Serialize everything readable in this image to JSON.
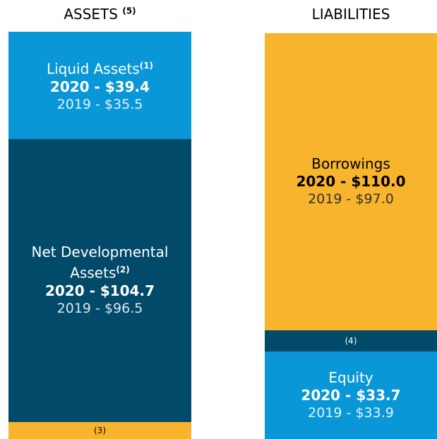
{
  "assets": {
    "title": "ASSETS",
    "note": "(5)",
    "blocks": [
      {
        "label": "Liquid Assets",
        "note": "(1)",
        "current": "2020 - $39.4",
        "prior": "2019 - $35.5"
      },
      {
        "label_lines": [
          "Net Developmental",
          "Assets"
        ],
        "note": "(2)",
        "current": "2020 - $104.7",
        "prior": "2019 - $96.5"
      },
      {
        "note": "(3)"
      }
    ]
  },
  "liabilities": {
    "title": "LIABILITIES",
    "blocks": [
      {
        "label": "Borrowings",
        "current": "2020 - $110.0",
        "prior": "2019 - $97.0"
      },
      {
        "note": "(4)"
      },
      {
        "label": "Equity",
        "current": "2020 - $33.7",
        "prior": "2019 - $33.9"
      }
    ]
  }
}
